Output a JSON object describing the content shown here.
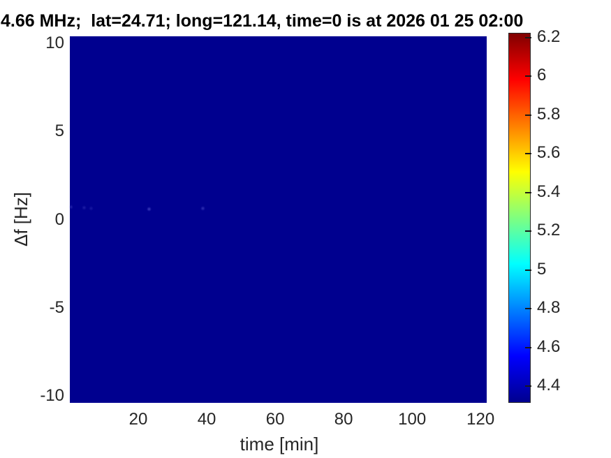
{
  "figure": {
    "background_color": "#ffffff",
    "text_color": "#262626",
    "title_color": "#000000"
  },
  "chart_data": {
    "type": "heatmap",
    "title": "4.66 MHz;  lat=24.71; long=121.14, time=0 is at 2026 01 25 02:00",
    "xlabel": "time [min]",
    "ylabel": "Δf [Hz]",
    "x_ticks": [
      20,
      40,
      60,
      80,
      100,
      120
    ],
    "y_ticks": [
      10,
      5,
      0,
      -5,
      -10
    ],
    "xlim": [
      0,
      121.8
    ],
    "ylim": [
      -10.4,
      10.4
    ],
    "grid": false,
    "legend": false,
    "field_description": "uniform field at the bottom of the color scale (dark navy, value ~4.35) with a few faint brighter specks near Δf ≈ 0.6 Hz",
    "field_color": "#00008F",
    "hotspots": [
      {
        "time_min": 0.4,
        "delta_f_hz": 0.7,
        "intensity": 0.3
      },
      {
        "time_min": 4.1,
        "delta_f_hz": 0.66,
        "intensity": 0.25
      },
      {
        "time_min": 6.3,
        "delta_f_hz": 0.62,
        "intensity": 0.2
      },
      {
        "time_min": 23.1,
        "delta_f_hz": 0.58,
        "intensity": 0.5
      },
      {
        "time_min": 38.8,
        "delta_f_hz": 0.62,
        "intensity": 0.4
      }
    ],
    "colorbar": {
      "colormap": "jet",
      "axis_min": 4.31,
      "axis_max": 6.22,
      "ticks": [
        "6.2",
        "6",
        "5.8",
        "5.6",
        "5.4",
        "5.2",
        "5",
        "4.8",
        "4.6",
        "4.4"
      ],
      "gradient_stops": [
        {
          "pos": 0.0,
          "color": "#00008F"
        },
        {
          "pos": 0.125,
          "color": "#0000FF"
        },
        {
          "pos": 0.375,
          "color": "#00FFFF"
        },
        {
          "pos": 0.625,
          "color": "#FFFF00"
        },
        {
          "pos": 0.875,
          "color": "#FF0000"
        },
        {
          "pos": 1.0,
          "color": "#800000"
        }
      ],
      "hotspot_color": "120,120,235"
    }
  }
}
